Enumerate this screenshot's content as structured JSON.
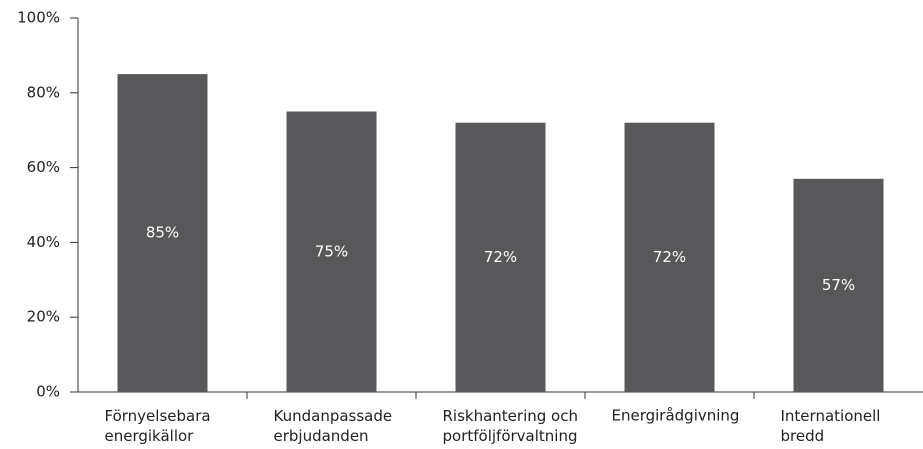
{
  "chart_data": {
    "type": "bar",
    "categories": [
      "Förnyelsebara\nenergikällor",
      "Kundanpassade\nerbjudanden",
      "Riskhantering och\nportföljförvaltning",
      "Energirådgivning",
      "Internationell\nbredd"
    ],
    "values": [
      85,
      75,
      72,
      72,
      57
    ],
    "value_labels": [
      "85%",
      "75%",
      "72%",
      "72%",
      "57%"
    ],
    "color": "#58585a",
    "ylim": [
      0,
      100
    ],
    "yticks": [
      {
        "value": 0,
        "label": "0%"
      },
      {
        "value": 20,
        "label": "20%"
      },
      {
        "value": 40,
        "label": "40%"
      },
      {
        "value": 60,
        "label": "60%"
      },
      {
        "value": 80,
        "label": "80%"
      },
      {
        "value": 100,
        "label": "100%"
      }
    ],
    "grid": false
  }
}
